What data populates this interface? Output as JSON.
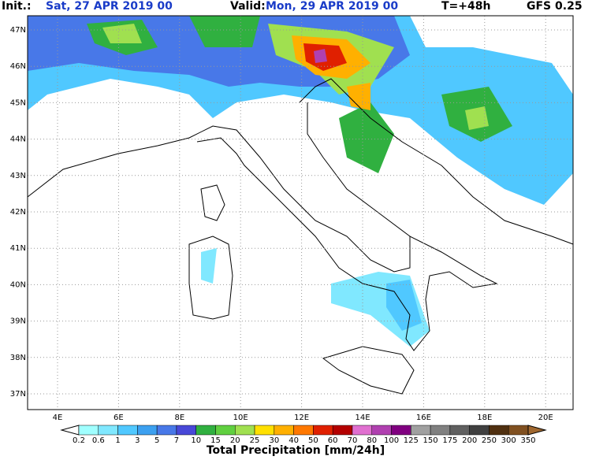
{
  "header": {
    "init_label": "Init.:",
    "init_value": "Sat, 27 APR 2019  00",
    "valid_label": "Valid:",
    "valid_value": "Mon, 29 APR 2019  00",
    "lead_time": "T=+48h",
    "model": "GFS 0.25"
  },
  "map": {
    "lat_labels": [
      "47N",
      "46N",
      "45N",
      "44N",
      "43N",
      "42N",
      "41N",
      "40N",
      "39N",
      "38N",
      "37N"
    ],
    "lon_labels": [
      "4E",
      "6E",
      "8E",
      "10E",
      "12E",
      "14E",
      "16E",
      "18E",
      "20E"
    ]
  },
  "legend": {
    "title": "Total Precipitation [mm/24h]",
    "labels": [
      "0.2",
      "0.6",
      "1",
      "3",
      "5",
      "7",
      "10",
      "15",
      "20",
      "25",
      "30",
      "40",
      "50",
      "60",
      "70",
      "80",
      "100",
      "125",
      "150",
      "175",
      "200",
      "250",
      "300",
      "350"
    ],
    "colors": [
      "#ffffff",
      "#a0ffff",
      "#80e8ff",
      "#50c8ff",
      "#3ca0f0",
      "#4878e8",
      "#4848d8",
      "#30b040",
      "#60d040",
      "#a0e050",
      "#ffe000",
      "#ffb000",
      "#ff7800",
      "#e02000",
      "#b40000",
      "#e070d0",
      "#b040b0",
      "#800080",
      "#a0a0a0",
      "#808080",
      "#606060",
      "#404040",
      "#503010",
      "#805020",
      "#a06830"
    ]
  }
}
